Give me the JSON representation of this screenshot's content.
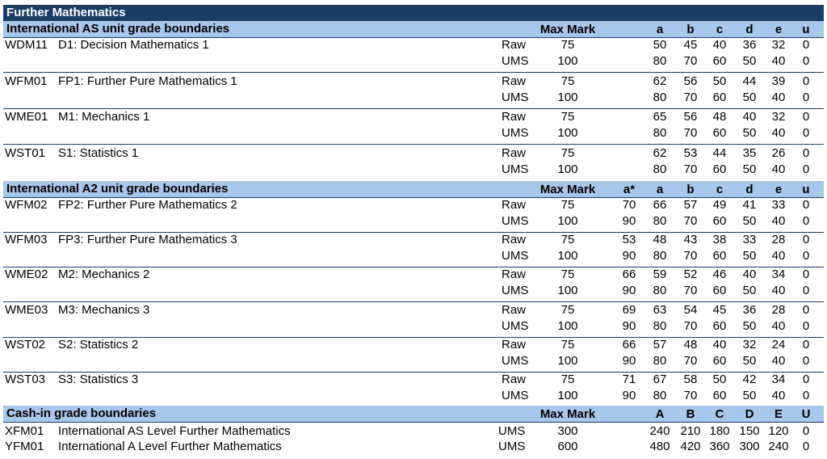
{
  "title": "Further Mathematics",
  "sections": [
    {
      "heading": "International AS unit grade boundaries",
      "max_mark_label": "Max Mark",
      "grades": [
        "",
        "a",
        "b",
        "c",
        "d",
        "e",
        "u"
      ],
      "units": [
        {
          "code": "WDM11",
          "name": "D1: Decision Mathematics 1",
          "rows": [
            {
              "type": "Raw",
              "max": "75",
              "vals": [
                "",
                "50",
                "45",
                "40",
                "36",
                "32",
                "0"
              ]
            },
            {
              "type": "UMS",
              "max": "100",
              "vals": [
                "",
                "80",
                "70",
                "60",
                "50",
                "40",
                "0"
              ]
            }
          ]
        },
        {
          "code": "WFM01",
          "name": "FP1: Further Pure Mathematics 1",
          "rows": [
            {
              "type": "Raw",
              "max": "75",
              "vals": [
                "",
                "62",
                "56",
                "50",
                "44",
                "39",
                "0"
              ]
            },
            {
              "type": "UMS",
              "max": "100",
              "vals": [
                "",
                "80",
                "70",
                "60",
                "50",
                "40",
                "0"
              ]
            }
          ]
        },
        {
          "code": "WME01",
          "name": "M1: Mechanics 1",
          "rows": [
            {
              "type": "Raw",
              "max": "75",
              "vals": [
                "",
                "65",
                "56",
                "48",
                "40",
                "32",
                "0"
              ]
            },
            {
              "type": "UMS",
              "max": "100",
              "vals": [
                "",
                "80",
                "70",
                "60",
                "50",
                "40",
                "0"
              ]
            }
          ]
        },
        {
          "code": "WST01",
          "name": "S1: Statistics 1",
          "rows": [
            {
              "type": "Raw",
              "max": "75",
              "vals": [
                "",
                "62",
                "53",
                "44",
                "35",
                "26",
                "0"
              ]
            },
            {
              "type": "UMS",
              "max": "100",
              "vals": [
                "",
                "80",
                "70",
                "60",
                "50",
                "40",
                "0"
              ]
            }
          ]
        }
      ]
    },
    {
      "heading": "International A2 unit grade boundaries",
      "max_mark_label": "Max Mark",
      "grades": [
        "a*",
        "a",
        "b",
        "c",
        "d",
        "e",
        "u"
      ],
      "units": [
        {
          "code": "WFM02",
          "name": "FP2: Further Pure Mathematics 2",
          "rows": [
            {
              "type": "Raw",
              "max": "75",
              "vals": [
                "70",
                "66",
                "57",
                "49",
                "41",
                "33",
                "0"
              ]
            },
            {
              "type": "UMS",
              "max": "100",
              "vals": [
                "90",
                "80",
                "70",
                "60",
                "50",
                "40",
                "0"
              ]
            }
          ]
        },
        {
          "code": "WFM03",
          "name": "FP3: Further Pure Mathematics 3",
          "rows": [
            {
              "type": "Raw",
              "max": "75",
              "vals": [
                "53",
                "48",
                "43",
                "38",
                "33",
                "28",
                "0"
              ]
            },
            {
              "type": "UMS",
              "max": "100",
              "vals": [
                "90",
                "80",
                "70",
                "60",
                "50",
                "40",
                "0"
              ]
            }
          ]
        },
        {
          "code": "WME02",
          "name": "M2: Mechanics 2",
          "rows": [
            {
              "type": "Raw",
              "max": "75",
              "vals": [
                "66",
                "59",
                "52",
                "46",
                "40",
                "34",
                "0"
              ]
            },
            {
              "type": "UMS",
              "max": "100",
              "vals": [
                "90",
                "80",
                "70",
                "60",
                "50",
                "40",
                "0"
              ]
            }
          ]
        },
        {
          "code": "WME03",
          "name": "M3: Mechanics 3",
          "rows": [
            {
              "type": "Raw",
              "max": "75",
              "vals": [
                "69",
                "63",
                "54",
                "45",
                "36",
                "28",
                "0"
              ]
            },
            {
              "type": "UMS",
              "max": "100",
              "vals": [
                "90",
                "80",
                "70",
                "60",
                "50",
                "40",
                "0"
              ]
            }
          ]
        },
        {
          "code": "WST02",
          "name": "S2: Statistics 2",
          "rows": [
            {
              "type": "Raw",
              "max": "75",
              "vals": [
                "66",
                "57",
                "48",
                "40",
                "32",
                "24",
                "0"
              ]
            },
            {
              "type": "UMS",
              "max": "100",
              "vals": [
                "90",
                "80",
                "70",
                "60",
                "50",
                "40",
                "0"
              ]
            }
          ]
        },
        {
          "code": "WST03",
          "name": "S3: Statistics 3",
          "rows": [
            {
              "type": "Raw",
              "max": "75",
              "vals": [
                "71",
                "67",
                "58",
                "50",
                "42",
                "34",
                "0"
              ]
            },
            {
              "type": "UMS",
              "max": "100",
              "vals": [
                "90",
                "80",
                "70",
                "60",
                "50",
                "40",
                "0"
              ]
            }
          ]
        }
      ]
    }
  ],
  "cashin": {
    "heading": "Cash-in grade boundaries",
    "max_mark_label": "Max Mark",
    "grades": [
      "A",
      "B",
      "C",
      "D",
      "E",
      "U"
    ],
    "rows": [
      {
        "code": "XFM01",
        "name": "International AS Level Further Mathematics",
        "type": "UMS",
        "max": "300",
        "vals": [
          "240",
          "210",
          "180",
          "150",
          "120",
          "0"
        ]
      },
      {
        "code": "YFM01",
        "name": "International A Level Further Mathematics",
        "type": "UMS",
        "max": "600",
        "vals": [
          "480",
          "420",
          "360",
          "300",
          "240",
          "0"
        ]
      }
    ]
  }
}
